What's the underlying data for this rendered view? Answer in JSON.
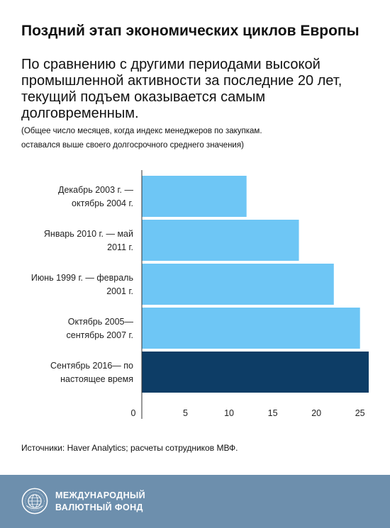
{
  "header": {
    "title": "Поздний этап экономических циклов Европы",
    "subtitle": "По сравнению с другими периодами высокой промышленной активности за последние 20 лет, текущий подъем оказывается самым долговременным.",
    "note_line1": "(Общее число месяцев, когда индекс менеджеров по закупкам.",
    "note_line2": "оставался выше своего долгосрочного среднего значения)"
  },
  "chart_data": {
    "type": "bar",
    "orientation": "horizontal",
    "categories": [
      [
        "Декабрь 2003 г. —",
        "октябрь 2004 г."
      ],
      [
        "Январь 2010 г. — май",
        "2011 г."
      ],
      [
        "Июнь 1999 г. — февраль",
        "2001 г."
      ],
      [
        "Октябрь 2005—",
        "сентябрь 2007 г."
      ],
      [
        "Сентябрь 2016— по",
        "настоящее время"
      ]
    ],
    "values": [
      12,
      18,
      22,
      25,
      26
    ],
    "xlim": [
      0,
      26
    ],
    "xticks": [
      0,
      5,
      10,
      15,
      20,
      25
    ],
    "grid": false,
    "colors": [
      "#6ec6f5",
      "#6ec6f5",
      "#6ec6f5",
      "#6ec6f5",
      "#0d3d66"
    ]
  },
  "source": "Источники: Haver Analytics; расчеты сотрудников МВФ.",
  "footer": {
    "org_line1": "МЕЖДУНАРОДНЫЙ",
    "org_line2": "ВАЛЮТНЫЙ ФОНД",
    "background": "#6d8fad",
    "logo_icon": "imf-seal-icon"
  }
}
